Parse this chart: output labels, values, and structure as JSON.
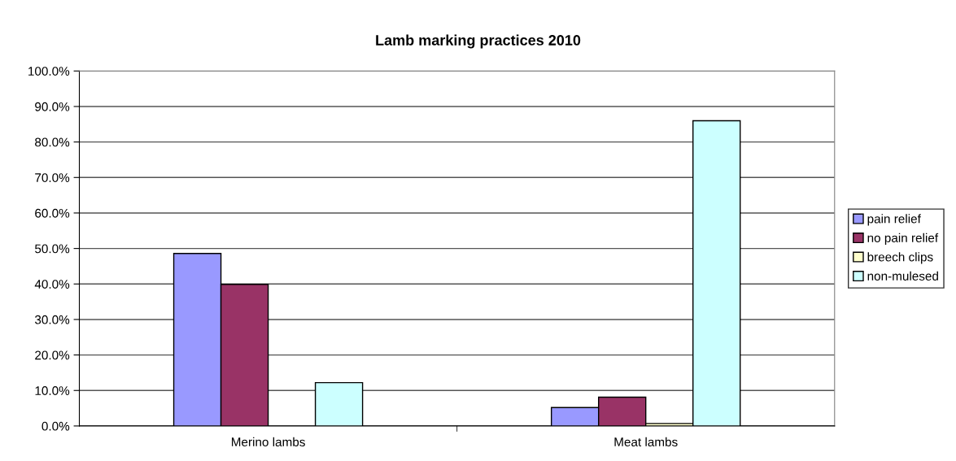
{
  "chart_data": {
    "type": "bar",
    "title": "Lamb marking practices 2010",
    "categories": [
      "Merino lambs",
      "Meat lambs"
    ],
    "series": [
      {
        "name": "pain relief",
        "color": "#9999ff",
        "values": [
          48.6,
          5.2
        ]
      },
      {
        "name": "no pain relief",
        "color": "#993366",
        "values": [
          39.9,
          8.1
        ]
      },
      {
        "name": "breech clips",
        "color": "#ffffcc",
        "values": [
          null,
          0.7
        ]
      },
      {
        "name": "non-mulesed",
        "color": "#ccffff",
        "values": [
          12.2,
          86.0
        ]
      }
    ],
    "ylim": [
      0,
      100
    ],
    "yticks": [
      {
        "value": 0,
        "label": "0.0%"
      },
      {
        "value": 10,
        "label": "10.0%"
      },
      {
        "value": 20,
        "label": "20.0%"
      },
      {
        "value": 30,
        "label": "30.0%"
      },
      {
        "value": 40,
        "label": "40.0%"
      },
      {
        "value": 50,
        "label": "50.0%"
      },
      {
        "value": 60,
        "label": "60.0%"
      },
      {
        "value": 70,
        "label": "70.0%"
      },
      {
        "value": 80,
        "label": "80.0%"
      },
      {
        "value": 90,
        "label": "90.0%"
      },
      {
        "value": 100,
        "label": "100.0%"
      }
    ],
    "grid": "y",
    "legend": "right"
  }
}
